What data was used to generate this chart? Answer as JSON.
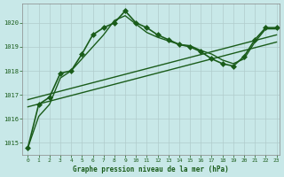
{
  "title": "Graphe pression niveau de la mer (hPa)",
  "bg_color": "#c8e8e8",
  "line_color": "#1a5c1a",
  "xlim": [
    -0.5,
    23.3
  ],
  "ylim": [
    1014.5,
    1020.8
  ],
  "yticks": [
    1015,
    1016,
    1017,
    1018,
    1019,
    1020
  ],
  "xticks": [
    0,
    1,
    2,
    3,
    4,
    5,
    6,
    7,
    8,
    9,
    10,
    11,
    12,
    13,
    14,
    15,
    16,
    17,
    18,
    19,
    20,
    21,
    22,
    23
  ],
  "series": [
    {
      "x": [
        0,
        1,
        2,
        3,
        4,
        5,
        6,
        7,
        8,
        9,
        10,
        11,
        12,
        13,
        14,
        15,
        16,
        17,
        18,
        19,
        20,
        21,
        22,
        23
      ],
      "y": [
        1014.8,
        1016.6,
        1016.9,
        1017.9,
        1018.0,
        1018.7,
        1019.5,
        1019.8,
        1020.0,
        1020.5,
        1020.0,
        1019.8,
        1019.5,
        1019.3,
        1019.1,
        1019.0,
        1018.8,
        1018.5,
        1018.3,
        1018.2,
        1018.6,
        1019.3,
        1019.8,
        1019.8
      ],
      "marker": "D",
      "markersize": 3,
      "linewidth": 1.2
    },
    {
      "x": [
        0,
        1,
        2,
        3,
        4,
        5,
        6,
        7,
        8,
        9,
        10,
        11,
        12,
        13,
        14,
        15,
        16,
        17,
        18,
        19,
        20,
        21,
        22,
        23
      ],
      "y": [
        1014.8,
        1016.1,
        1016.6,
        1017.7,
        1018.0,
        1018.5,
        1019.0,
        1019.5,
        1020.1,
        1020.3,
        1019.95,
        1019.6,
        1019.4,
        1019.25,
        1019.1,
        1019.05,
        1018.85,
        1018.7,
        1018.45,
        1018.3,
        1018.5,
        1019.2,
        1019.75,
        1019.75
      ],
      "marker": null,
      "markersize": 0,
      "linewidth": 1.0
    },
    {
      "x": [
        0,
        23
      ],
      "y": [
        1016.5,
        1019.2
      ],
      "marker": null,
      "markersize": 0,
      "linewidth": 1.0
    },
    {
      "x": [
        0,
        23
      ],
      "y": [
        1016.8,
        1019.5
      ],
      "marker": null,
      "markersize": 0,
      "linewidth": 1.0
    }
  ]
}
